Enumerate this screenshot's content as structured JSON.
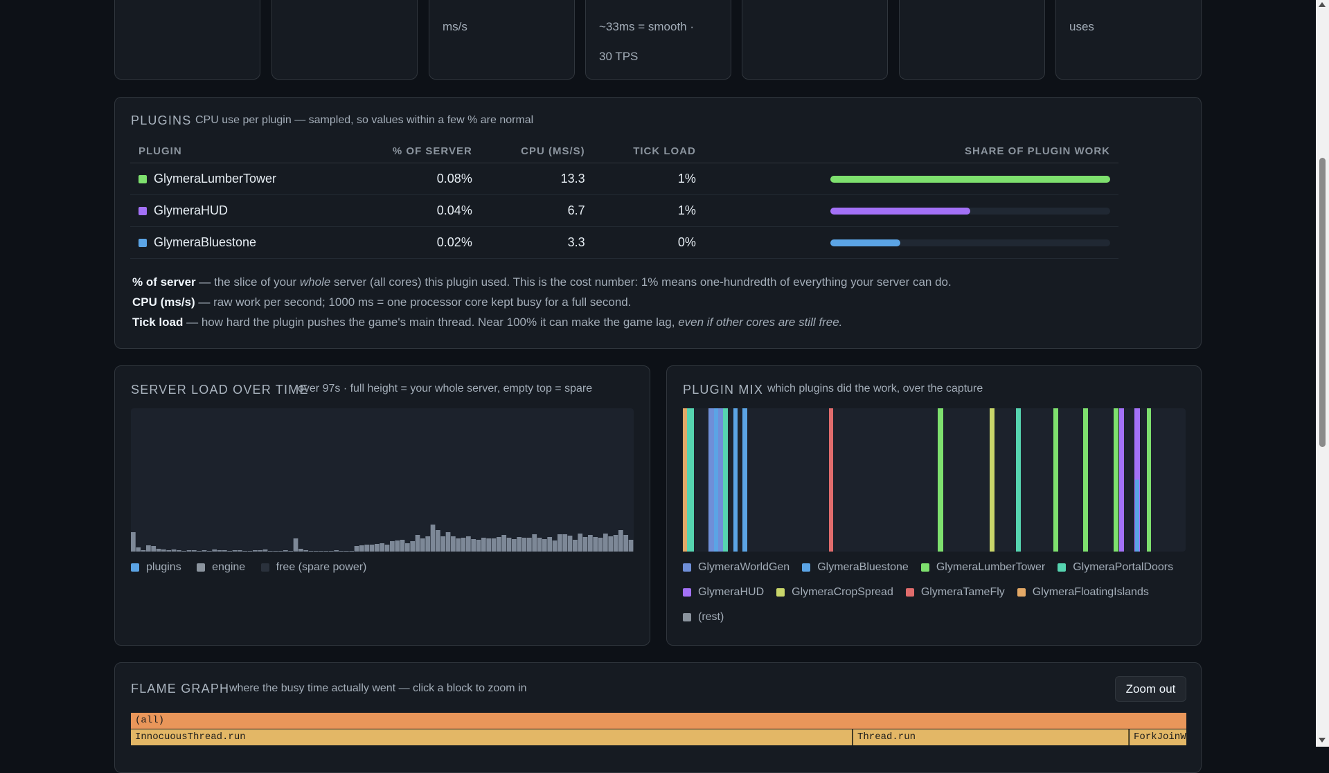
{
  "stats": {
    "card3_text": "ms/s",
    "card4_line1": "~33ms = smooth ·",
    "card4_line2": "30 TPS",
    "card8_text": "uses"
  },
  "plugins": {
    "title": "PLUGINS",
    "subtitle": "CPU use per plugin — sampled, so values within a few % are normal",
    "columns": [
      "PLUGIN",
      "% OF SERVER",
      "CPU (MS/S)",
      "TICK LOAD",
      "SHARE OF PLUGIN WORK"
    ],
    "rows": [
      {
        "name": "GlymeraLumberTower",
        "pct": "0.08%",
        "cpu": "13.3",
        "tick": "1%",
        "share": 1.0,
        "color": "#7ee06e"
      },
      {
        "name": "GlymeraHUD",
        "pct": "0.04%",
        "cpu": "6.7",
        "tick": "1%",
        "share": 0.5,
        "color": "#a371f7"
      },
      {
        "name": "GlymeraBluestone",
        "pct": "0.02%",
        "cpu": "3.3",
        "tick": "0%",
        "share": 0.25,
        "color": "#5ba4e5"
      }
    ],
    "notes": {
      "line1_term": "% of server",
      "line1_a": " — the slice of your ",
      "line1_em": "whole",
      "line1_b": " server (all cores) this plugin used. This is the cost number: 1% means one-hundredth of everything your server can do.",
      "line2_term": "CPU (ms/s)",
      "line2_text": " — raw work per second; 1000 ms = one processor core kept busy for a full second.",
      "line3_term": "Tick load",
      "line3_text": " — how hard the plugin pushes the game's main thread. Near 100% it can make the game lag, ",
      "line3_em": "even if other cores are still free."
    }
  },
  "server_load": {
    "title": "SERVER LOAD OVER TIME",
    "subtitle": "over 97s · full height = your whole server, empty top = spare",
    "legend": [
      {
        "label": "plugins",
        "color": "#5ba4e5"
      },
      {
        "label": "engine",
        "color": "#8b949e"
      },
      {
        "label": "free (spare power)",
        "color": "#2a313c"
      }
    ]
  },
  "plugin_mix": {
    "title": "PLUGIN MIX",
    "subtitle": "which plugins did the work, over the capture",
    "legend": [
      {
        "label": "GlymeraWorldGen",
        "color": "#6f8fd8"
      },
      {
        "label": "GlymeraBluestone",
        "color": "#5ba4e5"
      },
      {
        "label": "GlymeraLumberTower",
        "color": "#7ee06e"
      },
      {
        "label": "GlymeraPortalDoors",
        "color": "#56d4b0"
      },
      {
        "label": "GlymeraHUD",
        "color": "#a371f7"
      },
      {
        "label": "GlymeraCropSpread",
        "color": "#c9d66a"
      },
      {
        "label": "GlymeraTameFly",
        "color": "#e06c6c"
      },
      {
        "label": "GlymeraFloatingIslands",
        "color": "#e3a866"
      },
      {
        "label": "(rest)",
        "color": "#8b949e"
      }
    ]
  },
  "flame": {
    "title": "FLAME GRAPH",
    "subtitle": "where the busy time actually went — click a block to zoom in",
    "zoom_out": "Zoom out",
    "root": "(all)",
    "row2": [
      "InnocuousThread.run",
      "Thread.run",
      "ForkJoinW"
    ]
  }
}
